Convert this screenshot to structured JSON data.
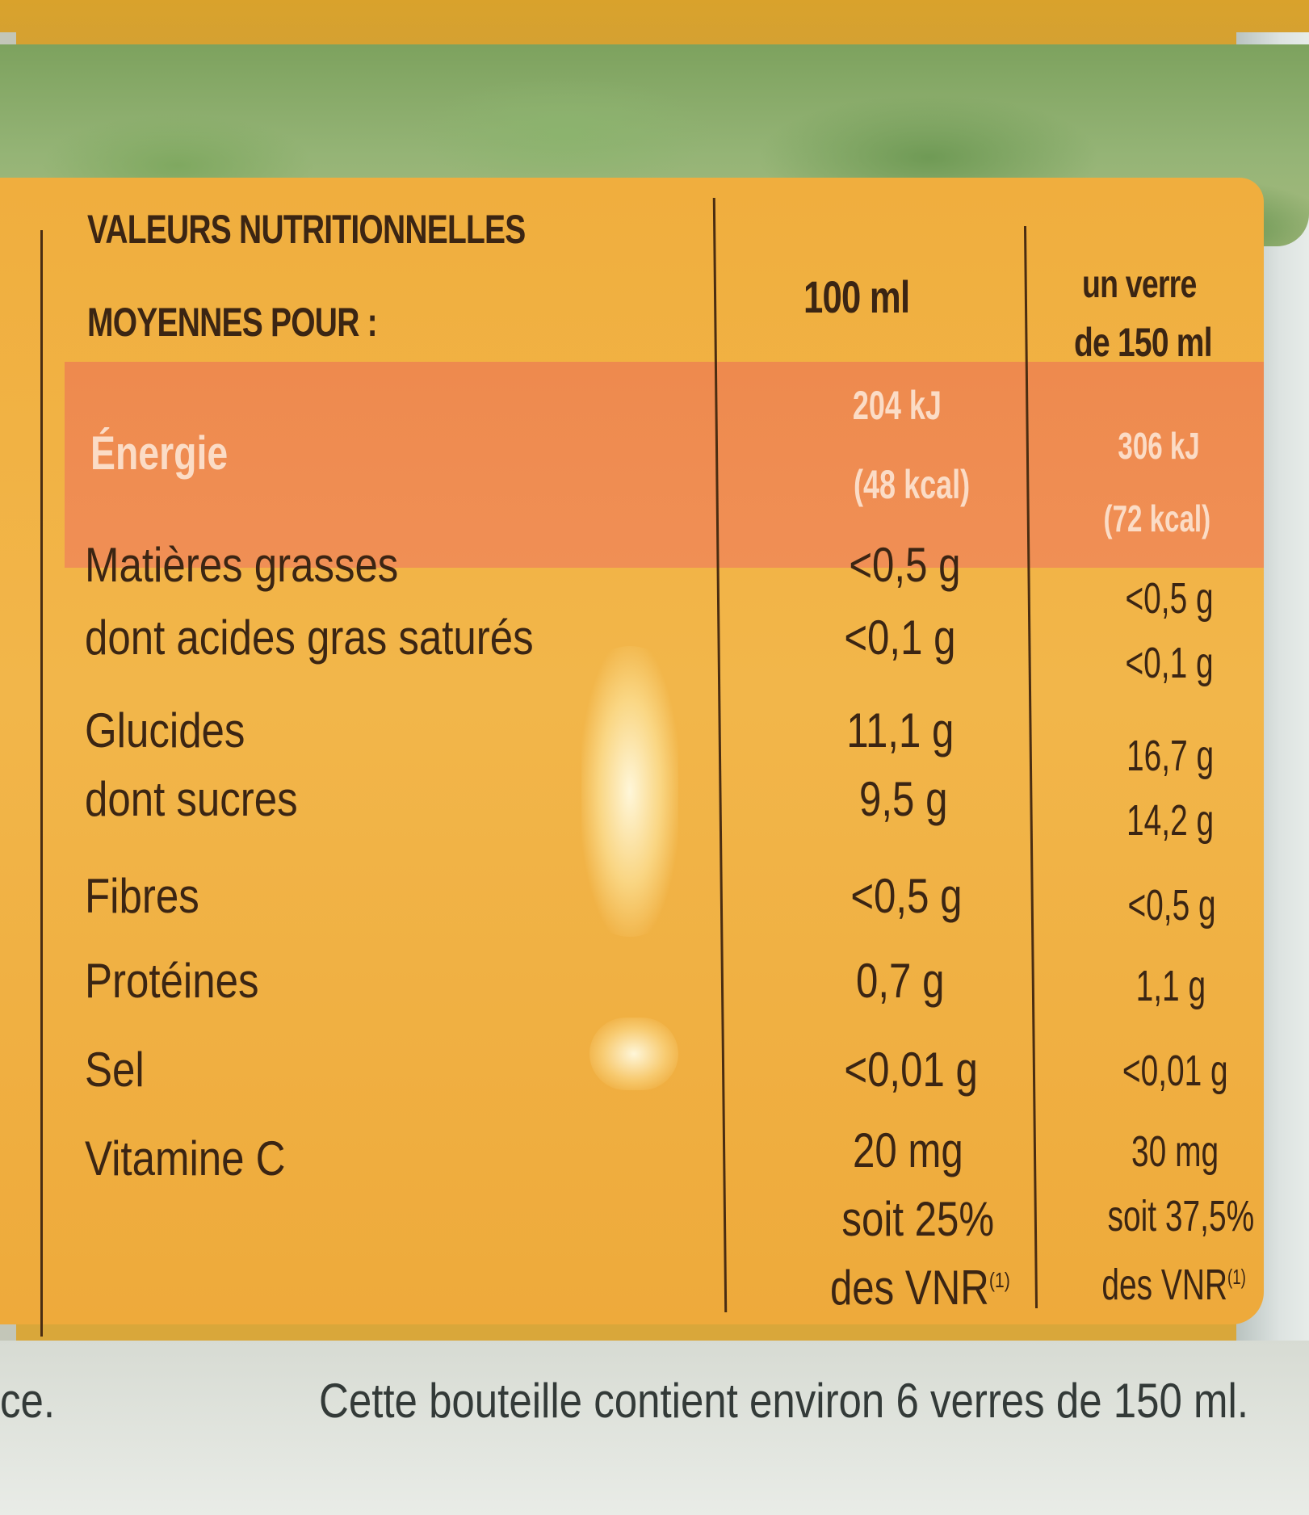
{
  "table": {
    "heading_line1": "VALEURS NUTRITIONNELLES",
    "heading_line2": "MOYENNES POUR :",
    "col1_header": "100 ml",
    "col2_header_line1": "un verre",
    "col2_header_line2": "de 150 ml",
    "energy": {
      "label": "Énergie",
      "col1_line1": "204 kJ",
      "col1_line2": "(48 kcal)",
      "col2_line1": "306 kJ",
      "col2_line2": "(72 kcal)"
    },
    "rows": [
      {
        "label": "Matières grasses",
        "col1": "<0,5 g",
        "col2": "<0,5 g"
      },
      {
        "label": "dont acides gras saturés",
        "col1": "<0,1 g",
        "col2": "<0,1 g"
      },
      {
        "label": "Glucides",
        "col1": "11,1 g",
        "col2": "16,7 g"
      },
      {
        "label": "dont sucres",
        "col1": "9,5 g",
        "col2": "14,2 g"
      },
      {
        "label": "Fibres",
        "col1": "<0,5 g",
        "col2": "<0,5 g"
      },
      {
        "label": "Protéines",
        "col1": "0,7 g",
        "col2": "1,1 g"
      },
      {
        "label": "Sel",
        "col1": "<0,01 g",
        "col2": "<0,01 g"
      }
    ],
    "vitamin": {
      "label": "Vitamine C",
      "col1_line1": "20 mg",
      "col1_line2": "soit 25%",
      "col1_line3": "des VNR",
      "col2_line1": "30 mg",
      "col2_line2": "soit 37,5%",
      "col2_line3": "des VNR",
      "footnote_mark": "(1)"
    }
  },
  "footer": {
    "left_fragment": "ce.",
    "note": "Cette bouteille contient environ 6 verres de 150 ml."
  },
  "colors": {
    "panel": "#f0ae3e",
    "energy_band": "#ee8a4e",
    "text": "#3b2513",
    "energy_text": "#fbdcc6"
  }
}
